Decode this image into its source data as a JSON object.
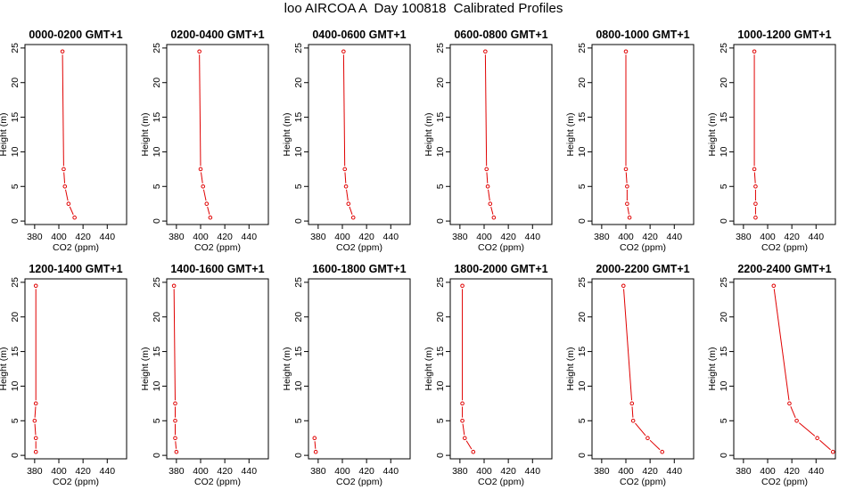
{
  "title": "loo AIRCOA A  Day 100818  Calibrated Profiles",
  "chart_data": [
    {
      "type": "line",
      "title": "0000-0200 GMT+1",
      "xlabel": "CO2 (ppm)",
      "ylabel": "Height (m)",
      "xlim": [
        372,
        456
      ],
      "ylim": [
        -0.5,
        25.5
      ],
      "xticks": [
        380,
        400,
        420,
        440
      ],
      "yticks": [
        0,
        5,
        10,
        15,
        20,
        25
      ],
      "x": [
        413,
        408,
        405,
        404,
        403
      ],
      "y": [
        0.5,
        2.5,
        5,
        7.5,
        24.5
      ]
    },
    {
      "type": "line",
      "title": "0200-0400 GMT+1",
      "xlabel": "CO2 (ppm)",
      "ylabel": "Height (m)",
      "xlim": [
        372,
        456
      ],
      "ylim": [
        -0.5,
        25.5
      ],
      "xticks": [
        380,
        400,
        420,
        440
      ],
      "yticks": [
        0,
        5,
        10,
        15,
        20,
        25
      ],
      "x": [
        408,
        405,
        402,
        400,
        399
      ],
      "y": [
        0.5,
        2.5,
        5,
        7.5,
        24.5
      ]
    },
    {
      "type": "line",
      "title": "0400-0600 GMT+1",
      "xlabel": "CO2 (ppm)",
      "ylabel": "Height (m)",
      "xlim": [
        372,
        456
      ],
      "ylim": [
        -0.5,
        25.5
      ],
      "xticks": [
        380,
        400,
        420,
        440
      ],
      "yticks": [
        0,
        5,
        10,
        15,
        20,
        25
      ],
      "x": [
        409,
        405,
        403,
        402,
        401
      ],
      "y": [
        0.5,
        2.5,
        5,
        7.5,
        24.5
      ]
    },
    {
      "type": "line",
      "title": "0600-0800 GMT+1",
      "xlabel": "CO2 (ppm)",
      "ylabel": "Height (m)",
      "xlim": [
        372,
        456
      ],
      "ylim": [
        -0.5,
        25.5
      ],
      "xticks": [
        380,
        400,
        420,
        440
      ],
      "yticks": [
        0,
        5,
        10,
        15,
        20,
        25
      ],
      "x": [
        408,
        405,
        403,
        402,
        401
      ],
      "y": [
        0.5,
        2.5,
        5,
        7.5,
        24.5
      ]
    },
    {
      "type": "line",
      "title": "0800-1000 GMT+1",
      "xlabel": "CO2 (ppm)",
      "ylabel": "Height (m)",
      "xlim": [
        372,
        456
      ],
      "ylim": [
        -0.5,
        25.5
      ],
      "xticks": [
        380,
        400,
        420,
        440
      ],
      "yticks": [
        0,
        5,
        10,
        15,
        20,
        25
      ],
      "x": [
        403,
        401,
        401,
        400,
        400
      ],
      "y": [
        0.5,
        2.5,
        5,
        7.5,
        24.5
      ]
    },
    {
      "type": "line",
      "title": "1000-1200 GMT+1",
      "xlabel": "CO2 (ppm)",
      "ylabel": "Height (m)",
      "xlim": [
        372,
        456
      ],
      "ylim": [
        -0.5,
        25.5
      ],
      "xticks": [
        380,
        400,
        420,
        440
      ],
      "yticks": [
        0,
        5,
        10,
        15,
        20,
        25
      ],
      "x": [
        390,
        390,
        390,
        389,
        389
      ],
      "y": [
        0.5,
        2.5,
        5,
        7.5,
        24.5
      ]
    },
    {
      "type": "line",
      "title": "1200-1400 GMT+1",
      "xlabel": "CO2 (ppm)",
      "ylabel": "Height (m)",
      "xlim": [
        372,
        456
      ],
      "ylim": [
        -0.5,
        25.5
      ],
      "xticks": [
        380,
        400,
        420,
        440
      ],
      "yticks": [
        0,
        5,
        10,
        15,
        20,
        25
      ],
      "x": [
        381,
        381,
        380,
        381,
        381
      ],
      "y": [
        0.5,
        2.5,
        5,
        7.5,
        24.5
      ]
    },
    {
      "type": "line",
      "title": "1400-1600 GMT+1",
      "xlabel": "CO2 (ppm)",
      "ylabel": "Height (m)",
      "xlim": [
        372,
        456
      ],
      "ylim": [
        -0.5,
        25.5
      ],
      "xticks": [
        380,
        400,
        420,
        440
      ],
      "yticks": [
        0,
        5,
        10,
        15,
        20,
        25
      ],
      "x": [
        380,
        379,
        379,
        379,
        378
      ],
      "y": [
        0.5,
        2.5,
        5,
        7.5,
        24.5
      ]
    },
    {
      "type": "line",
      "title": "1600-1800 GMT+1",
      "xlabel": "CO2 (ppm)",
      "ylabel": "Height (m)",
      "xlim": [
        372,
        456
      ],
      "ylim": [
        -0.5,
        25.5
      ],
      "xticks": [
        380,
        400,
        420,
        440
      ],
      "yticks": [
        0,
        5,
        10,
        15,
        20,
        25
      ],
      "x": [
        378,
        377
      ],
      "y": [
        0.5,
        2.5
      ]
    },
    {
      "type": "line",
      "title": "1800-2000 GMT+1",
      "xlabel": "CO2 (ppm)",
      "ylabel": "Height (m)",
      "xlim": [
        372,
        456
      ],
      "ylim": [
        -0.5,
        25.5
      ],
      "xticks": [
        380,
        400,
        420,
        440
      ],
      "yticks": [
        0,
        5,
        10,
        15,
        20,
        25
      ],
      "x": [
        391,
        384,
        382,
        382,
        382
      ],
      "y": [
        0.5,
        2.5,
        5,
        7.5,
        24.5
      ]
    },
    {
      "type": "line",
      "title": "2000-2200 GMT+1",
      "xlabel": "CO2 (ppm)",
      "ylabel": "Height (m)",
      "xlim": [
        372,
        456
      ],
      "ylim": [
        -0.5,
        25.5
      ],
      "xticks": [
        380,
        400,
        420,
        440
      ],
      "yticks": [
        0,
        5,
        10,
        15,
        20,
        25
      ],
      "x": [
        430,
        418,
        406,
        405,
        398
      ],
      "y": [
        0.5,
        2.5,
        5,
        7.5,
        24.5
      ]
    },
    {
      "type": "line",
      "title": "2200-2400 GMT+1",
      "xlabel": "CO2 (ppm)",
      "ylabel": "Height (m)",
      "xlim": [
        372,
        456
      ],
      "ylim": [
        -0.5,
        25.5
      ],
      "xticks": [
        380,
        400,
        420,
        440
      ],
      "yticks": [
        0,
        5,
        10,
        15,
        20,
        25
      ],
      "x": [
        454,
        441,
        424,
        418,
        405
      ],
      "y": [
        0.5,
        2.5,
        5,
        7.5,
        24.5
      ]
    }
  ],
  "colors": {
    "series": "#e00000",
    "axis": "#000000"
  }
}
